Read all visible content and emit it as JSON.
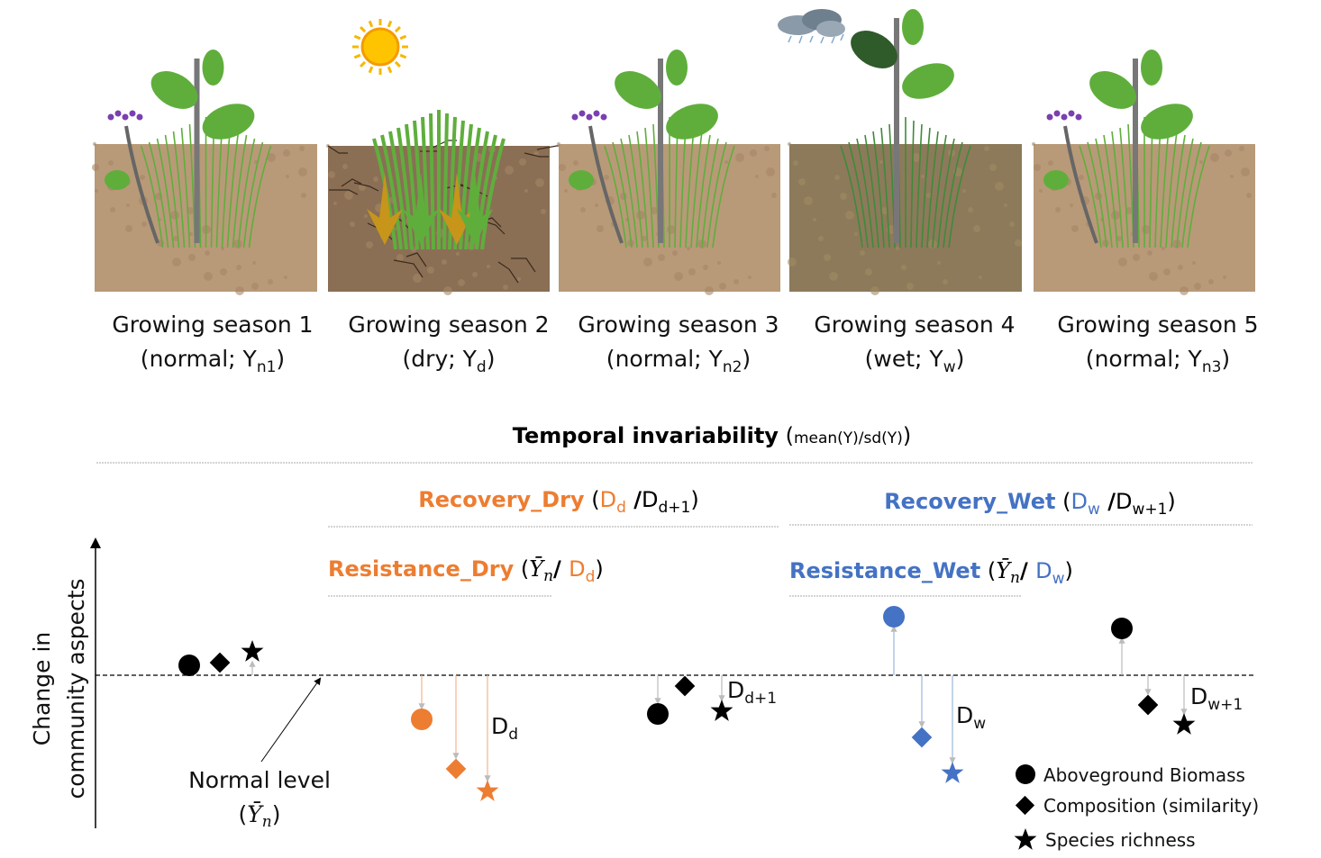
{
  "colors": {
    "dry": "#ED7D31",
    "wet": "#4472C4",
    "normal": "#000000",
    "soil": "#b89a78",
    "plant": "#5fae3c"
  },
  "seasons": [
    {
      "title": "Growing season 1",
      "cond": "normal",
      "sym": "Y",
      "sub": "n1",
      "tone": "normal",
      "icon": "none"
    },
    {
      "title": "Growing season 2",
      "cond": "dry",
      "sym": "Y",
      "sub": "d",
      "tone": "dry",
      "icon": "sun-icon"
    },
    {
      "title": "Growing season 3",
      "cond": "normal",
      "sym": "Y",
      "sub": "n2",
      "tone": "normal",
      "icon": "none"
    },
    {
      "title": "Growing season 4",
      "cond": "wet",
      "sym": "Y",
      "sub": "w",
      "tone": "wet",
      "icon": "rain-cloud-icon"
    },
    {
      "title": "Growing season 5",
      "cond": "normal",
      "sym": "Y",
      "sub": "n3",
      "tone": "normal",
      "icon": "none"
    }
  ],
  "metrics": {
    "invariability": {
      "name": "Temporal invariability",
      "formula": "mean(Y)/sd(Y)"
    },
    "recovery_dry": {
      "name": "Recovery_Dry",
      "num": "D",
      "num_sub": "d",
      "den": "D",
      "den_sub": "d+1"
    },
    "resistance_dry": {
      "name": "Resistance_Dry",
      "num": "Ȳ",
      "num_sub": "n",
      "den": "D",
      "den_sub": "d"
    },
    "recovery_wet": {
      "name": "Recovery_Wet",
      "num": "D",
      "num_sub": "w",
      "den": "D",
      "den_sub": "w+1"
    },
    "resistance_wet": {
      "name": "Resistance_Wet",
      "num": "Ȳ",
      "num_sub": "n",
      "den": "D",
      "den_sub": "w"
    }
  },
  "axis": {
    "ylabel_line1": "Change in",
    "ylabel_line2": "community aspects"
  },
  "normal_level": {
    "label": "Normal level",
    "sym": "Ȳ",
    "sub": "n"
  },
  "deviations": {
    "dd": {
      "sym": "D",
      "sub": "d"
    },
    "dd1": {
      "sym": "D",
      "sub": "d+1"
    },
    "dw": {
      "sym": "D",
      "sub": "w"
    },
    "dw1": {
      "sym": "D",
      "sub": "w+1"
    }
  },
  "legend": [
    {
      "marker": "circle",
      "label": "Aboveground Biomass"
    },
    {
      "marker": "diamond",
      "label": "Composition (similarity)"
    },
    {
      "marker": "star",
      "label": "Species richness"
    }
  ]
}
